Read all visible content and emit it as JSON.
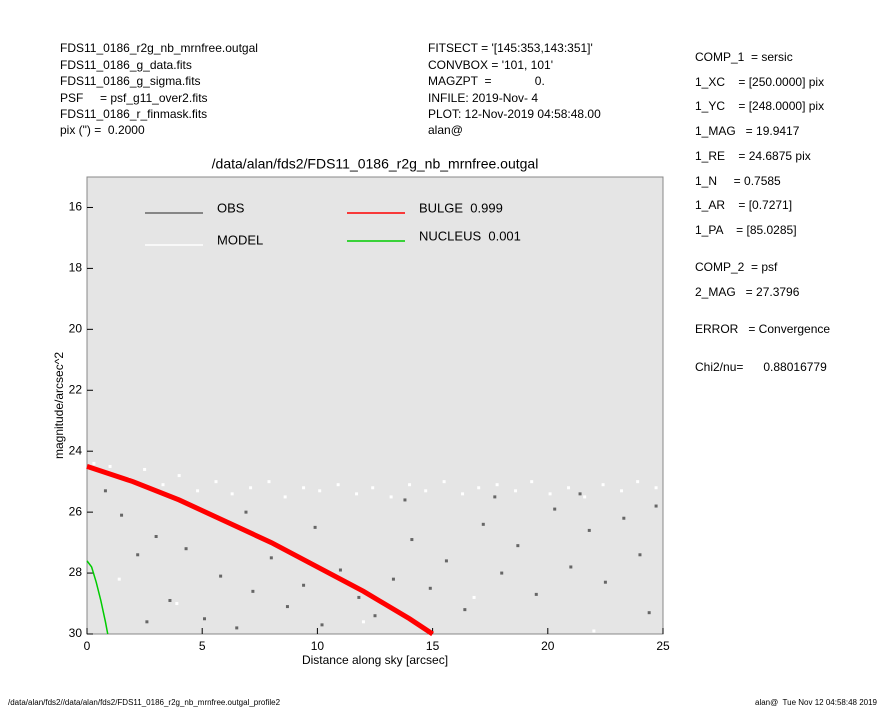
{
  "header": {
    "left": [
      "FDS11_0186_r2g_nb_mrnfree.outgal",
      "FDS11_0186_g_data.fits",
      "FDS11_0186_g_sigma.fits",
      "PSF     = psf_g11_over2.fits",
      "FDS11_0186_r_finmask.fits",
      "pix (\") =  0.2000"
    ],
    "middle": [
      "FITSECT = '[145:353,143:351]'",
      "CONVBOX = '101, 101'",
      "MAGZPT  =             0.",
      "INFILE: 2019-Nov- 4",
      "PLOT: 12-Nov-2019 04:58:48.00",
      "alan@"
    ]
  },
  "params": [
    "COMP_1  = sersic",
    "1_XC    = [250.0000] pix",
    "1_YC    = [248.0000] pix",
    "1_MAG   = 19.9417",
    "1_RE    = 24.6875 pix",
    "1_N     = 0.7585",
    "1_AR    = [0.7271]",
    "1_PA    = [85.0285]",
    "COMP_2  = psf",
    "2_MAG   = 27.3796",
    "ERROR   = Convergence",
    "Chi2/nu=      0.88016779"
  ],
  "footer": {
    "left": "/data/alan/fds2//data/alan/fds2/FDS11_0186_r2g_nb_mrnfree.outgal_profile2",
    "right": "alan@  Tue Nov 12 04:58:48 2019"
  },
  "chart_data": {
    "type": "scatter",
    "title": "/data/alan/fds2/FDS11_0186_r2g_nb_mrnfree.outgal",
    "xlabel": "Distance along sky [arcsec]",
    "ylabel": "magnitude/arcsec^2",
    "xlim": [
      0,
      25
    ],
    "ylim": [
      30,
      15
    ],
    "xticks": [
      0,
      5,
      10,
      15,
      20,
      25
    ],
    "yticks": [
      16,
      18,
      20,
      22,
      24,
      26,
      28,
      30
    ],
    "background": "#e5e5e5",
    "series": [
      {
        "name": "OBS",
        "color": "#666666",
        "style": "markers",
        "x": [
          0.8,
          1.5,
          2.2,
          3.0,
          3.6,
          4.3,
          5.1,
          5.8,
          6.5,
          7.2,
          8.0,
          8.7,
          9.4,
          10.2,
          11.0,
          11.8,
          12.5,
          13.3,
          14.1,
          14.9,
          15.6,
          16.4,
          17.2,
          18.0,
          18.7,
          19.5,
          20.3,
          21.0,
          21.8,
          22.5,
          23.3,
          24.0,
          24.7,
          2.6,
          6.9,
          9.9,
          13.8,
          17.7,
          21.4,
          24.4
        ],
        "values": [
          25.3,
          26.1,
          27.4,
          26.8,
          28.9,
          27.2,
          29.5,
          28.1,
          29.8,
          28.6,
          27.5,
          29.1,
          28.4,
          29.7,
          27.9,
          28.8,
          29.4,
          28.2,
          26.9,
          28.5,
          27.6,
          29.2,
          26.4,
          28.0,
          27.1,
          28.7,
          25.9,
          27.8,
          26.6,
          28.3,
          26.2,
          27.4,
          25.8,
          29.6,
          26.0,
          26.5,
          25.6,
          25.5,
          25.4,
          29.3
        ]
      },
      {
        "name": "MODEL",
        "color": "#ffffff",
        "style": "markers",
        "x": [
          0.3,
          1.0,
          1.8,
          2.5,
          3.3,
          4.0,
          4.8,
          5.6,
          6.3,
          7.1,
          7.9,
          8.6,
          9.4,
          10.1,
          10.9,
          11.7,
          12.4,
          13.2,
          14.0,
          14.7,
          15.5,
          16.3,
          17.0,
          17.8,
          18.6,
          19.3,
          20.1,
          20.9,
          21.6,
          22.4,
          23.2,
          23.9,
          24.7,
          1.4,
          3.9,
          12.0,
          16.8,
          22.0
        ],
        "values": [
          24.4,
          24.5,
          24.9,
          24.6,
          25.1,
          24.8,
          25.3,
          25.0,
          25.4,
          25.2,
          25.0,
          25.5,
          25.2,
          25.3,
          25.1,
          25.4,
          25.2,
          25.5,
          25.1,
          25.3,
          25.0,
          25.4,
          25.2,
          25.1,
          25.3,
          25.0,
          25.4,
          25.2,
          25.5,
          25.1,
          25.3,
          25.0,
          25.2,
          28.2,
          29.0,
          29.6,
          28.8,
          29.9
        ]
      },
      {
        "name": "BULGE  0.999",
        "color": "#ff0000",
        "style": "line",
        "x": [
          0,
          2,
          4,
          6,
          8,
          10,
          12,
          14,
          15
        ],
        "values": [
          24.5,
          25.0,
          25.6,
          26.3,
          27.0,
          27.8,
          28.6,
          29.5,
          30
        ]
      },
      {
        "name": "NUCLEUS  0.001",
        "color": "#00cc00",
        "style": "line",
        "x": [
          0,
          0.2,
          0.4,
          0.6,
          0.8,
          0.9
        ],
        "values": [
          27.6,
          27.8,
          28.3,
          28.9,
          29.6,
          30
        ]
      }
    ]
  }
}
